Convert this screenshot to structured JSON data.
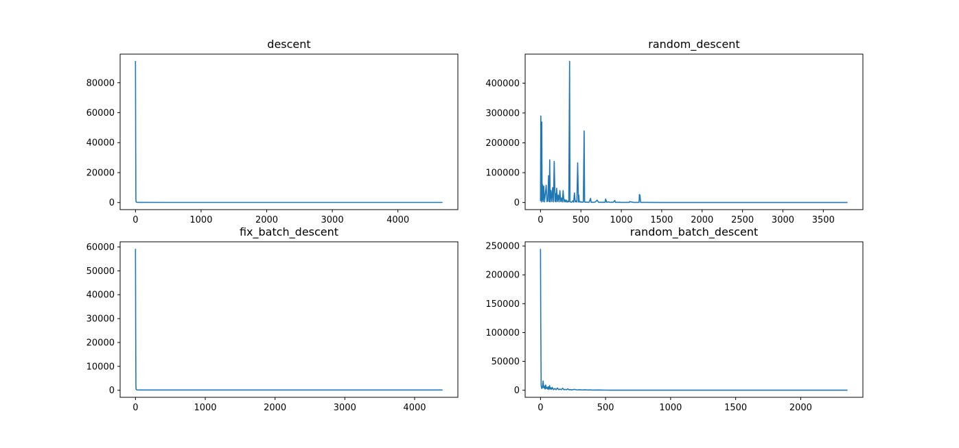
{
  "figure": {
    "background": "#ffffff"
  },
  "chart_data": [
    {
      "type": "line",
      "title": "descent",
      "xlabel": "",
      "ylabel": "",
      "xlim": [
        -234,
        4914
      ],
      "ylim": [
        -4700,
        99100
      ],
      "xticks": [
        0,
        1000,
        2000,
        3000,
        4000
      ],
      "yticks": [
        0,
        20000,
        40000,
        60000,
        80000
      ],
      "grid": false,
      "legend": "none",
      "color": "#1f77b4",
      "series": [
        {
          "x": [
            0,
            3,
            6,
            10,
            20,
            50,
            100,
            500,
            1000,
            2000,
            3000,
            4000,
            4680
          ],
          "values": [
            94500,
            40000,
            2000,
            400,
            200,
            150,
            120,
            100,
            100,
            100,
            100,
            100,
            100
          ]
        }
      ]
    },
    {
      "type": "line",
      "title": "random_descent",
      "xlabel": "",
      "ylabel": "",
      "xlim": [
        -190,
        3990
      ],
      "ylim": [
        -23800,
        497200
      ],
      "xticks": [
        0,
        500,
        1000,
        1500,
        2000,
        2500,
        3000,
        3500
      ],
      "yticks": [
        0,
        100000,
        200000,
        300000,
        400000
      ],
      "grid": false,
      "legend": "none",
      "color": "#1f77b4",
      "series": [
        {
          "x": [
            0,
            4,
            8,
            12,
            16,
            20,
            26,
            32,
            40,
            50,
            60,
            70,
            80,
            90,
            100,
            108,
            114,
            120,
            130,
            140,
            150,
            160,
            170,
            180,
            186,
            192,
            200,
            210,
            220,
            230,
            240,
            250,
            260,
            270,
            280,
            290,
            300,
            310,
            320,
            330,
            340,
            350,
            360,
            365,
            370,
            375,
            380,
            390,
            400,
            410,
            420,
            430,
            440,
            450,
            460,
            470,
            474,
            480,
            490,
            500,
            510,
            520,
            530,
            540,
            546,
            552,
            560,
            580,
            600,
            620,
            626,
            640,
            660,
            680,
            700,
            720,
            740,
            760,
            780,
            800,
            806,
            820,
            840,
            860,
            880,
            900,
            920,
            926,
            940,
            960,
            980,
            1000,
            1050,
            1100,
            1104,
            1150,
            1200,
            1220,
            1224,
            1230,
            1240,
            1300,
            1500,
            2000,
            2500,
            3000,
            3500,
            3800
          ],
          "values": [
            5000,
            290000,
            10000,
            2000,
            270000,
            8000,
            60000,
            3000,
            55000,
            2000,
            30000,
            58000,
            3000,
            5000,
            90000,
            3000,
            143000,
            2000,
            40000,
            3000,
            50000,
            2000,
            138000,
            4000,
            30000,
            2000,
            48000,
            3000,
            25000,
            2000,
            40000,
            3000,
            15000,
            2000,
            40000,
            2000,
            10000,
            2000,
            8000,
            1000,
            5000,
            2000,
            473000,
            3000,
            2000,
            1500,
            1000,
            2000,
            6000,
            1000,
            32000,
            2000,
            5000,
            1500,
            133000,
            2000,
            25000,
            1500,
            3000,
            1000,
            2000,
            1000,
            1500,
            240000,
            2000,
            1000,
            1500,
            1000,
            500,
            14000,
            500,
            1000,
            500,
            2000,
            8000,
            500,
            1000,
            500,
            1000,
            500,
            12000,
            500,
            2000,
            500,
            1000,
            500,
            7000,
            500,
            1000,
            500,
            1000,
            500,
            500,
            500,
            3000,
            500,
            500,
            500,
            27000,
            25000,
            500,
            500,
            200,
            100,
            100,
            100,
            100,
            100
          ]
        }
      ]
    },
    {
      "type": "line",
      "title": "fix_batch_descent",
      "xlabel": "",
      "ylabel": "",
      "xlim": [
        -220,
        4620
      ],
      "ylim": [
        -2950,
        62150
      ],
      "xticks": [
        0,
        1000,
        2000,
        3000,
        4000
      ],
      "yticks": [
        0,
        10000,
        20000,
        30000,
        40000,
        50000,
        60000
      ],
      "grid": false,
      "legend": "none",
      "color": "#1f77b4",
      "series": [
        {
          "x": [
            0,
            3,
            6,
            10,
            20,
            50,
            100,
            500,
            1000,
            2000,
            3000,
            4000,
            4400
          ],
          "values": [
            59200,
            25000,
            1500,
            300,
            150,
            100,
            100,
            100,
            100,
            100,
            100,
            100,
            100
          ]
        }
      ]
    },
    {
      "type": "line",
      "title": "random_batch_descent",
      "xlabel": "",
      "ylabel": "",
      "xlim": [
        -118,
        2478
      ],
      "ylim": [
        -12250,
        257250
      ],
      "xticks": [
        0,
        500,
        1000,
        1500,
        2000
      ],
      "yticks": [
        0,
        50000,
        100000,
        150000,
        200000,
        250000
      ],
      "grid": false,
      "legend": "none",
      "color": "#1f77b4",
      "series": [
        {
          "x": [
            0,
            2,
            5,
            10,
            15,
            20,
            25,
            30,
            35,
            40,
            45,
            50,
            55,
            60,
            65,
            70,
            75,
            80,
            85,
            90,
            100,
            110,
            120,
            130,
            140,
            150,
            160,
            170,
            180,
            190,
            200,
            210,
            220,
            230,
            240,
            260,
            280,
            300,
            320,
            340,
            360,
            380,
            400,
            450,
            500,
            600,
            800,
            1000,
            1500,
            2000,
            2360
          ],
          "values": [
            245000,
            120000,
            8000,
            3000,
            5000,
            16000,
            4000,
            7000,
            2000,
            9000,
            3000,
            5000,
            2000,
            6000,
            1500,
            8000,
            2000,
            4000,
            1500,
            5000,
            1000,
            3000,
            1000,
            4000,
            1000,
            2000,
            1000,
            3500,
            800,
            1500,
            800,
            2500,
            700,
            1200,
            600,
            1500,
            500,
            900,
            400,
            700,
            400,
            600,
            300,
            400,
            200,
            150,
            100,
            100,
            100,
            100,
            100
          ]
        }
      ]
    }
  ]
}
